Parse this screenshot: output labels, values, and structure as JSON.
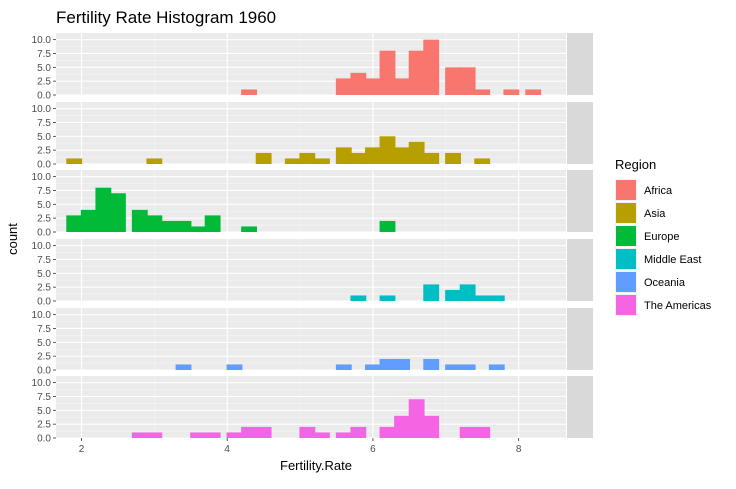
{
  "chart_data": {
    "type": "bar",
    "title": "Fertility Rate Histogram 1960",
    "xlabel": "Fertility.Rate",
    "ylabel": "count",
    "xlim": [
      1.65,
      8.65
    ],
    "ylim": [
      0,
      11.2
    ],
    "x_ticks": [
      2,
      4,
      6,
      8
    ],
    "y_ticks": [
      0,
      2.5,
      5,
      7.5,
      10
    ],
    "y_tick_labels": [
      "0.0",
      "2.5",
      "5.0",
      "7.5",
      "10.0"
    ],
    "bin_width": 0.2175,
    "grid": true,
    "legend_position": "right",
    "legend_title": "Region",
    "facets": [
      {
        "name": "Africa",
        "color": "#F8766D",
        "bins": [
          {
            "x": 4.3,
            "count": 1
          },
          {
            "x": 5.6,
            "count": 3
          },
          {
            "x": 5.8,
            "count": 4
          },
          {
            "x": 6.0,
            "count": 3
          },
          {
            "x": 6.2,
            "count": 8
          },
          {
            "x": 6.4,
            "count": 3
          },
          {
            "x": 6.6,
            "count": 8
          },
          {
            "x": 6.8,
            "count": 10
          },
          {
            "x": 7.1,
            "count": 5
          },
          {
            "x": 7.3,
            "count": 5
          },
          {
            "x": 7.5,
            "count": 1
          },
          {
            "x": 7.9,
            "count": 1
          },
          {
            "x": 8.2,
            "count": 1
          }
        ]
      },
      {
        "name": "Asia",
        "color": "#B79F00",
        "bins": [
          {
            "x": 1.9,
            "count": 1
          },
          {
            "x": 3.0,
            "count": 1
          },
          {
            "x": 4.5,
            "count": 2
          },
          {
            "x": 4.9,
            "count": 1
          },
          {
            "x": 5.1,
            "count": 2
          },
          {
            "x": 5.3,
            "count": 1
          },
          {
            "x": 5.6,
            "count": 3
          },
          {
            "x": 5.8,
            "count": 2
          },
          {
            "x": 6.0,
            "count": 3
          },
          {
            "x": 6.2,
            "count": 5
          },
          {
            "x": 6.4,
            "count": 3
          },
          {
            "x": 6.6,
            "count": 4
          },
          {
            "x": 6.8,
            "count": 2
          },
          {
            "x": 7.1,
            "count": 2
          },
          {
            "x": 7.5,
            "count": 1
          }
        ]
      },
      {
        "name": "Europe",
        "color": "#00BA38",
        "bins": [
          {
            "x": 1.9,
            "count": 3
          },
          {
            "x": 2.1,
            "count": 4
          },
          {
            "x": 2.3,
            "count": 8
          },
          {
            "x": 2.5,
            "count": 7
          },
          {
            "x": 2.8,
            "count": 4
          },
          {
            "x": 3.0,
            "count": 3
          },
          {
            "x": 3.2,
            "count": 2
          },
          {
            "x": 3.4,
            "count": 2
          },
          {
            "x": 3.6,
            "count": 1
          },
          {
            "x": 3.8,
            "count": 3
          },
          {
            "x": 4.3,
            "count": 1
          },
          {
            "x": 6.2,
            "count": 2
          }
        ]
      },
      {
        "name": "Middle East",
        "color": "#00BFC4",
        "bins": [
          {
            "x": 5.8,
            "count": 1
          },
          {
            "x": 6.2,
            "count": 1
          },
          {
            "x": 6.8,
            "count": 3
          },
          {
            "x": 7.1,
            "count": 2
          },
          {
            "x": 7.3,
            "count": 3
          },
          {
            "x": 7.5,
            "count": 1
          },
          {
            "x": 7.7,
            "count": 1
          }
        ]
      },
      {
        "name": "Oceania",
        "color": "#619CFF",
        "bins": [
          {
            "x": 3.4,
            "count": 1
          },
          {
            "x": 4.1,
            "count": 1
          },
          {
            "x": 5.6,
            "count": 1
          },
          {
            "x": 6.0,
            "count": 1
          },
          {
            "x": 6.2,
            "count": 2
          },
          {
            "x": 6.4,
            "count": 2
          },
          {
            "x": 6.8,
            "count": 2
          },
          {
            "x": 7.1,
            "count": 1
          },
          {
            "x": 7.3,
            "count": 1
          },
          {
            "x": 7.7,
            "count": 1
          }
        ]
      },
      {
        "name": "The Americas",
        "color": "#F564E3",
        "bins": [
          {
            "x": 2.8,
            "count": 1
          },
          {
            "x": 3.0,
            "count": 1
          },
          {
            "x": 3.6,
            "count": 1
          },
          {
            "x": 3.8,
            "count": 1
          },
          {
            "x": 4.1,
            "count": 1
          },
          {
            "x": 4.3,
            "count": 2
          },
          {
            "x": 4.5,
            "count": 2
          },
          {
            "x": 5.1,
            "count": 2
          },
          {
            "x": 5.3,
            "count": 1
          },
          {
            "x": 5.6,
            "count": 1
          },
          {
            "x": 5.8,
            "count": 2
          },
          {
            "x": 6.2,
            "count": 2
          },
          {
            "x": 6.4,
            "count": 4
          },
          {
            "x": 6.6,
            "count": 7
          },
          {
            "x": 6.8,
            "count": 4
          },
          {
            "x": 7.3,
            "count": 2
          },
          {
            "x": 7.5,
            "count": 2
          }
        ]
      }
    ]
  }
}
